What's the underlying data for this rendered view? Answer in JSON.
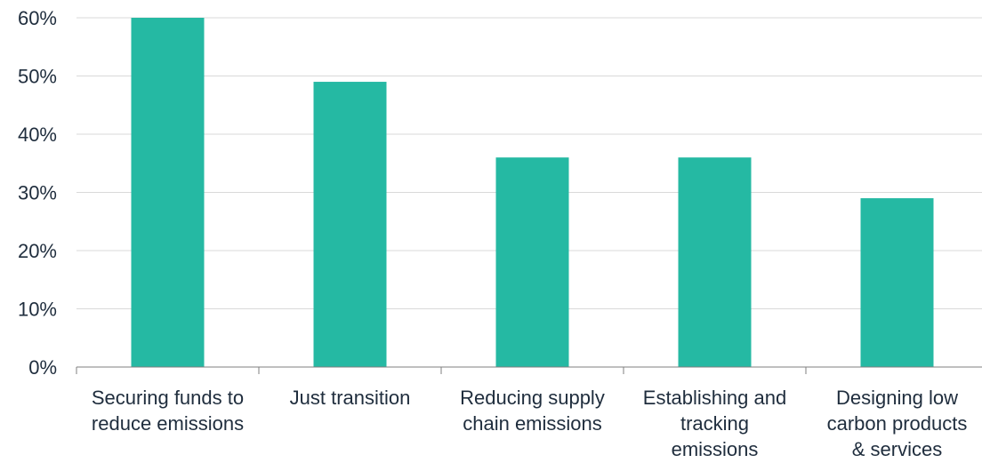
{
  "chart_data": {
    "type": "bar",
    "categories": [
      [
        "Securing funds to",
        "reduce emissions"
      ],
      [
        "Just transition"
      ],
      [
        "Reducing supply",
        "chain emissions"
      ],
      [
        "Establishing and",
        "tracking",
        "emissions"
      ],
      [
        "Designing low",
        "carbon products",
        "& services"
      ]
    ],
    "values": [
      60,
      49,
      36,
      36,
      29
    ],
    "y_ticks": [
      "0%",
      "10%",
      "20%",
      "30%",
      "40%",
      "50%",
      "60%"
    ],
    "ylim": [
      0,
      60
    ],
    "grid": true,
    "legend": "none",
    "title": "",
    "xlabel": "",
    "ylabel": "",
    "colors": {
      "bar": "#25b9a3",
      "grid": "#d9d9d9",
      "axis": "#7f7f7f",
      "text": "#1f2d3d"
    }
  }
}
